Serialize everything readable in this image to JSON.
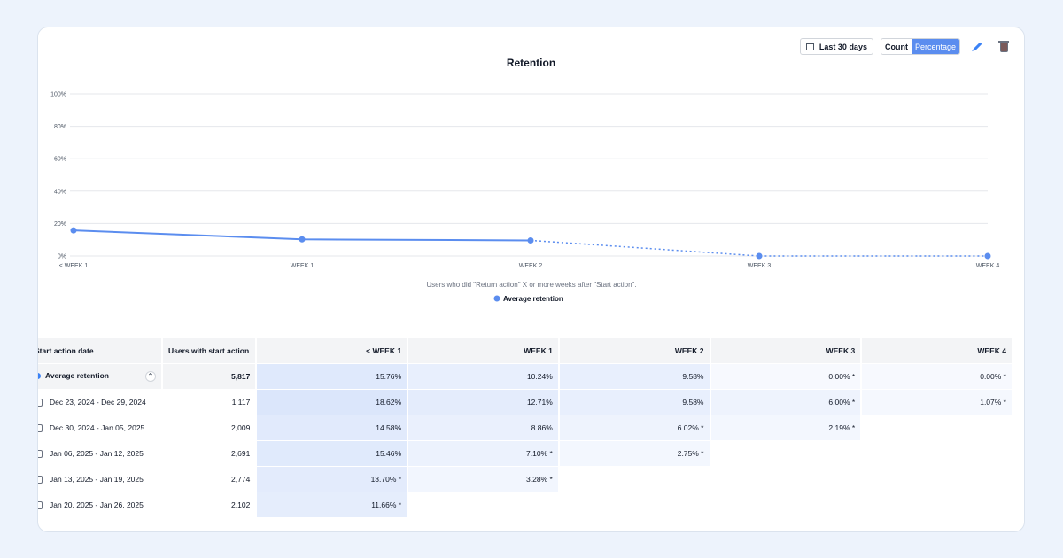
{
  "toolbar": {
    "date_range": "Last 30 days",
    "count_label": "Count",
    "percentage_label": "Percentage"
  },
  "chart_data": {
    "type": "line",
    "title": "Retention",
    "x": [
      "< WEEK 1",
      "WEEK 1",
      "WEEK 2",
      "WEEK 3",
      "WEEK 4"
    ],
    "yticks": [
      "100%",
      "80%",
      "60%",
      "40%",
      "20%",
      "0%"
    ],
    "ylim": [
      0,
      100
    ],
    "series": [
      {
        "name": "Average retention",
        "values": [
          15.76,
          10.24,
          9.58,
          0.0,
          0.0
        ],
        "color": "#5b8def",
        "dashed_from_index": 2
      }
    ],
    "caption": "Users who did \"Return action\" X or more weeks after \"Start action\".",
    "grid": true,
    "legend": "bottom"
  },
  "table": {
    "headers": [
      "Start action date",
      "Users with start action",
      "< WEEK 1",
      "WEEK 1",
      "WEEK 2",
      "WEEK 3",
      "WEEK 4"
    ],
    "average": {
      "label": "Average retention",
      "users": "5,817",
      "values": [
        "15.76%",
        "10.24%",
        "9.58%",
        "0.00% *",
        "0.00% *"
      ]
    },
    "rows": [
      {
        "date": "Dec 23, 2024 - Dec 29, 2024",
        "users": "1,117",
        "values": [
          "18.62%",
          "12.71%",
          "9.58%",
          "6.00% *",
          "1.07% *"
        ]
      },
      {
        "date": "Dec 30, 2024 - Jan 05, 2025",
        "users": "2,009",
        "values": [
          "14.58%",
          "8.86%",
          "6.02% *",
          "2.19% *"
        ]
      },
      {
        "date": "Jan 06, 2025 - Jan 12, 2025",
        "users": "2,691",
        "values": [
          "15.46%",
          "7.10% *",
          "2.75% *"
        ]
      },
      {
        "date": "Jan 13, 2025 - Jan 19, 2025",
        "users": "2,774",
        "values": [
          "13.70% *",
          "3.28% *"
        ]
      },
      {
        "date": "Jan 20, 2025 - Jan 26, 2025",
        "users": "2,102",
        "values": [
          "11.66% *"
        ]
      }
    ]
  }
}
